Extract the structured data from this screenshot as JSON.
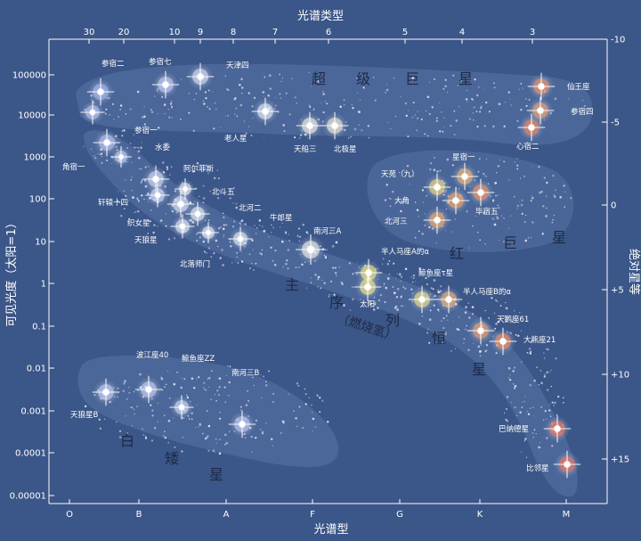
{
  "axes": {
    "top_title": "光谱类型",
    "bottom_title": "光谱型",
    "left_title": "可见光度（太阳=1）",
    "right_title": "绝对星等",
    "top_ticks": [
      {
        "label": "30",
        "tx": 100
      },
      {
        "label": "20",
        "tx": 139
      },
      {
        "label": "10",
        "tx": 196
      },
      {
        "label": "9",
        "tx": 225
      },
      {
        "label": "8",
        "tx": 262
      },
      {
        "label": "7",
        "tx": 309
      },
      {
        "label": "6",
        "tx": 369
      },
      {
        "label": "5",
        "tx": 455
      },
      {
        "label": "4",
        "tx": 519
      },
      {
        "label": "3",
        "tx": 598
      }
    ],
    "bottom_ticks": [
      {
        "label": "O",
        "tx": 78
      },
      {
        "label": "B",
        "tx": 156
      },
      {
        "label": "A",
        "tx": 254
      },
      {
        "label": "F",
        "tx": 351
      },
      {
        "label": "G",
        "tx": 449
      },
      {
        "label": "K",
        "tx": 539
      },
      {
        "label": "M",
        "tx": 636
      }
    ],
    "left_ticks": [
      {
        "label": "100000",
        "ty": 84
      },
      {
        "label": "10000",
        "ty": 129
      },
      {
        "label": "1000",
        "ty": 176
      },
      {
        "label": "100",
        "ty": 223
      },
      {
        "label": "10",
        "ty": 271
      },
      {
        "label": "1",
        "ty": 318
      },
      {
        "label": "0.1",
        "ty": 366
      },
      {
        "label": "0.01",
        "ty": 413
      },
      {
        "label": "0.001",
        "ty": 461
      },
      {
        "label": "0.0001",
        "ty": 508
      },
      {
        "label": "0.00001",
        "ty": 556
      }
    ],
    "right_ticks": [
      {
        "label": "-10",
        "ty": 44
      },
      {
        "label": "-5",
        "ty": 137
      },
      {
        "label": "0",
        "ty": 230
      },
      {
        "label": "+5",
        "ty": 325
      },
      {
        "label": "+10",
        "ty": 420
      },
      {
        "label": "+15",
        "ty": 515
      }
    ]
  },
  "regions": {
    "supergiant_chars": [
      "超",
      "级",
      "巨",
      "星"
    ],
    "red_giant_chars": [
      "红",
      "巨",
      "星"
    ],
    "main_sequence_chars": [
      "主",
      "序",
      "列",
      "恒",
      "星"
    ],
    "main_sequence_sub": "（燃烧氢）",
    "white_dwarf_chars": [
      "白",
      "矮",
      "星"
    ]
  },
  "stars": [
    {
      "label": "参宿二",
      "color": "#aab8ff"
    },
    {
      "label": "参宿七",
      "color": "#c8d2ff"
    },
    {
      "label": "天津四",
      "color": "#dfe6ff"
    },
    {
      "label": "老人星",
      "color": "#f0f4ff"
    },
    {
      "label": "天船三",
      "color": "#fffbe8"
    },
    {
      "label": "北极星",
      "color": "#fff4d8"
    },
    {
      "label": "仙王座",
      "color": "#ff8a50"
    },
    {
      "label": "参宿四",
      "color": "#ff9a5a"
    },
    {
      "label": "心宿二",
      "color": "#ff7a48"
    },
    {
      "label": "参宿一",
      "color": "#b4c4ff"
    },
    {
      "label": "水委",
      "color": "#c4d0ff"
    },
    {
      "label": "角宿一",
      "color": "#bcc8ff"
    },
    {
      "label": "阿尔菲斯",
      "color": "#d4dcff"
    },
    {
      "label": "轩辕十四",
      "color": "#dde4ff"
    },
    {
      "label": "织女星",
      "color": "#e6ecff"
    },
    {
      "label": "天狼星",
      "color": "#eef2ff"
    },
    {
      "label": "北斗五",
      "color": "#f2f5ff"
    },
    {
      "label": "北河二",
      "color": "#f4f6ff"
    },
    {
      "label": "北落师门",
      "color": "#eef2ff"
    },
    {
      "label": "牛郎星",
      "color": "#fafbff"
    },
    {
      "label": "南河三A",
      "color": "#fffdf0"
    },
    {
      "label": "天苑（九）",
      "color": "#ffe070"
    },
    {
      "label": "星宿一",
      "color": "#ffb060"
    },
    {
      "label": "大角",
      "color": "#ffa05a"
    },
    {
      "label": "毕宿五",
      "color": "#ff9050"
    },
    {
      "label": "北河三",
      "color": "#ffa858"
    },
    {
      "label": "半人马座A的α",
      "color": "#fff070"
    },
    {
      "label": "太阳",
      "color": "#fff080"
    },
    {
      "label": "鲸鱼座τ星",
      "color": "#ffe878"
    },
    {
      "label": "半人马座B的α",
      "color": "#ffb068"
    },
    {
      "label": "天鹅座61",
      "color": "#ff9858"
    },
    {
      "label": "大熊座21",
      "color": "#ff8850"
    },
    {
      "label": "巴纳德星",
      "color": "#ff7048"
    },
    {
      "label": "比邻星",
      "color": "#ff6a48"
    },
    {
      "label": "波江座40",
      "color": "#c8d4ff"
    },
    {
      "label": "鲸鱼座ZZ",
      "color": "#d4dcff"
    },
    {
      "label": "南河三B",
      "color": "#c0ccff"
    },
    {
      "label": "天狼星B",
      "color": "#c8d4ff"
    }
  ]
}
